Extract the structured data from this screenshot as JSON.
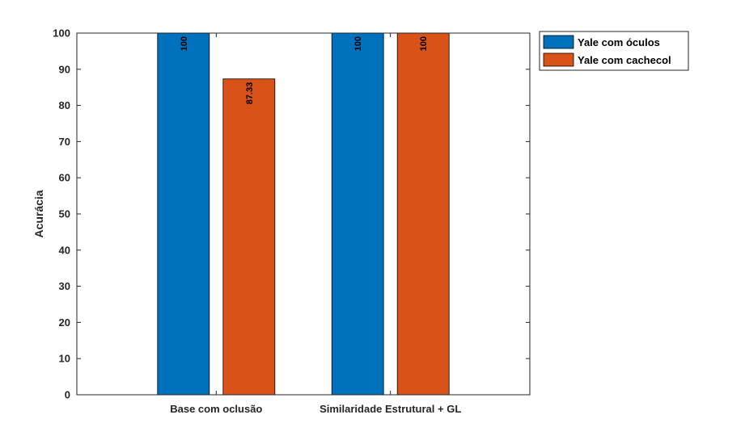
{
  "chart_data": {
    "type": "bar",
    "categories": [
      "Base com oclusão",
      "Similaridade Estrutural + GL"
    ],
    "series": [
      {
        "name": "Yale com óculos",
        "color": "#0072BD",
        "values": [
          100,
          100
        ],
        "labels": [
          "100",
          "100"
        ]
      },
      {
        "name": "Yale com cachecol",
        "color": "#D95319",
        "values": [
          87.33,
          100
        ],
        "labels": [
          "87.33",
          "100"
        ]
      }
    ],
    "xlabel": "",
    "ylabel": "Acurácia",
    "ylim": [
      0,
      100
    ],
    "yticks": [
      0,
      10,
      20,
      30,
      40,
      50,
      60,
      70,
      80,
      90,
      100
    ],
    "grid": false,
    "legend_position": "outside-top-right"
  }
}
